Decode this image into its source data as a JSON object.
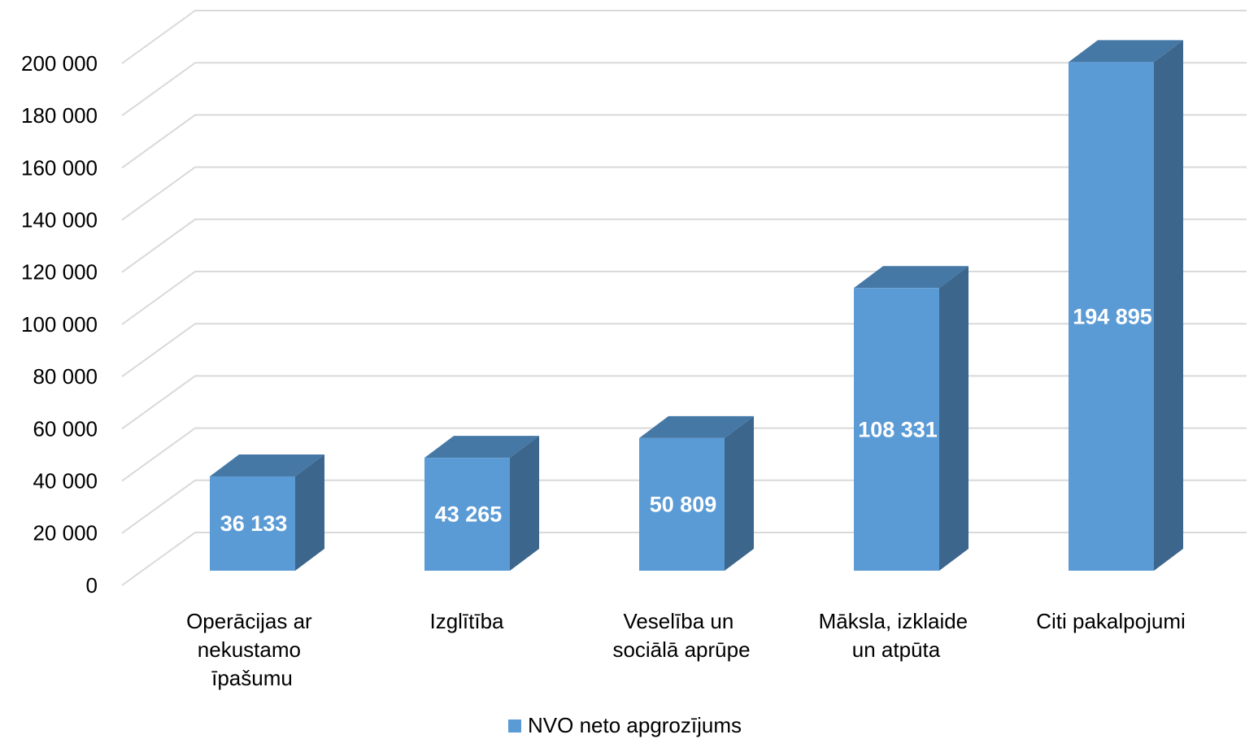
{
  "chart_data": {
    "type": "bar3d",
    "categories": [
      "Operācijas ar nekustamo īpašumu",
      "Izglītība",
      "Veselība un sociālā aprūpe",
      "Māksla, izklaide un atpūta",
      "Citi pakalpojumi"
    ],
    "series": [
      {
        "name": "NVO neto apgrozījums",
        "color": "#5b9bd5",
        "values": [
          36133,
          43265,
          50809,
          108331,
          194895
        ],
        "value_labels": [
          "36 133",
          "43 265",
          "50 809",
          "108 331",
          "194 895"
        ]
      }
    ],
    "ylim": [
      0,
      200000
    ],
    "yticks": [
      0,
      {
        "value": 20000,
        "label": "20 000"
      },
      {
        "value": 40000,
        "label": "40 000"
      },
      {
        "value": 60000,
        "label": "60 000"
      },
      {
        "value": 80000,
        "label": "80 000"
      },
      {
        "value": 100000,
        "label": "100 000"
      },
      {
        "value": 120000,
        "label": "120 000"
      },
      {
        "value": 140000,
        "label": "140 000"
      },
      {
        "value": 160000,
        "label": "160 000"
      },
      {
        "value": 180000,
        "label": "180 000"
      },
      {
        "value": 200000,
        "label": "200 000"
      }
    ],
    "grid": true,
    "legend": "bottom"
  }
}
